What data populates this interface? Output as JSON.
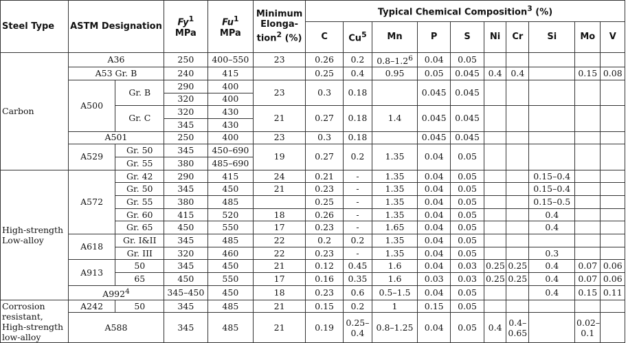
{
  "headers": {
    "steel_type": "Steel Type",
    "astm": "ASTM Designation",
    "fy": "Fy",
    "fy_sup": "1",
    "fu": "Fu",
    "fu_sup": "1",
    "mpa": "MPa",
    "min_elong_1": "Minimum",
    "min_elong_2": "Elonga-",
    "min_elong_3": "tion",
    "min_elong_sup": "2",
    "min_elong_4": "(%)",
    "chem": "Typical Chemical Composition",
    "chem_sup": "3",
    "chem_unit": "(%)",
    "elements": [
      "C",
      "Cu",
      "Mn",
      "P",
      "S",
      "Ni",
      "Cr",
      "Si",
      "Mo",
      "V"
    ],
    "cu_sup": "5"
  },
  "groups": {
    "carbon": "Carbon",
    "hsla": "High-strength Low-alloy",
    "corrosion": "Corrosion resistant, High-strength low-alloy"
  },
  "rows": {
    "a36": {
      "desig": "A36",
      "fy": "250",
      "fu": "400–550",
      "el": "23",
      "c": "0.26",
      "cu": "0.2",
      "mn": "0.8–1.2",
      "mn_sup": "6",
      "p": "0.04",
      "s": "0.05"
    },
    "a53": {
      "desig": "A53 Gr. B",
      "fy": "240",
      "fu": "415",
      "c": "0.25",
      "cu": "0.4",
      "mn": "0.95",
      "p": "0.05",
      "s": "0.045",
      "ni": "0.4",
      "cr": "0.4",
      "mo": "0.15",
      "v": "0.08"
    },
    "a500": {
      "desig": "A500",
      "grb": "Gr. B",
      "grc": "Gr. C",
      "b_fy1": "290",
      "b_fu1": "400",
      "b_fy2": "320",
      "b_fu2": "400",
      "b_el": "23",
      "b_c": "0.3",
      "b_cu": "0.18",
      "b_p": "0.045",
      "b_s": "0.045",
      "c_fy1": "320",
      "c_fu1": "430",
      "c_fy2": "345",
      "c_fu2": "430",
      "c_el": "21",
      "c_c": "0.27",
      "c_cu": "0.18",
      "c_mn": "1.4",
      "c_p": "0.045",
      "c_s": "0.045"
    },
    "a501": {
      "desig": "A501",
      "fy": "250",
      "fu": "400",
      "el": "23",
      "c": "0.3",
      "cu": "0.18",
      "p": "0.045",
      "s": "0.045"
    },
    "a529": {
      "desig": "A529",
      "g50": "Gr. 50",
      "g55": "Gr. 55",
      "fy50": "345",
      "fu50": "450–690",
      "fy55": "380",
      "fu55": "485–690",
      "el": "19",
      "c": "0.27",
      "cu": "0.2",
      "mn": "1.35",
      "p": "0.04",
      "s": "0.05"
    },
    "a572": {
      "desig": "A572",
      "grades": [
        {
          "gr": "Gr. 42",
          "fy": "290",
          "fu": "415",
          "el": "24",
          "c": "0.21",
          "cu": "-",
          "mn": "1.35",
          "p": "0.04",
          "s": "0.05",
          "si": "0.15–0.4"
        },
        {
          "gr": "Gr. 50",
          "fy": "345",
          "fu": "450",
          "el": "21",
          "c": "0.23",
          "cu": "-",
          "mn": "1.35",
          "p": "0.04",
          "s": "0.05",
          "si": "0.15–0.4"
        },
        {
          "gr": "Gr. 55",
          "fy": "380",
          "fu": "485",
          "el": "",
          "c": "0.25",
          "cu": "-",
          "mn": "1.35",
          "p": "0.04",
          "s": "0.05",
          "si": "0.15–0.5"
        },
        {
          "gr": "Gr. 60",
          "fy": "415",
          "fu": "520",
          "el": "18",
          "c": "0.26",
          "cu": "-",
          "mn": "1.35",
          "p": "0.04",
          "s": "0.05",
          "si": "0.4"
        },
        {
          "gr": "Gr. 65",
          "fy": "450",
          "fu": "550",
          "el": "17",
          "c": "0.23",
          "cu": "-",
          "mn": "1.65",
          "p": "0.04",
          "s": "0.05",
          "si": "0.4"
        }
      ]
    },
    "a618": {
      "desig": "A618",
      "grades": [
        {
          "gr": "Gr. I&II",
          "fy": "345",
          "fu": "485",
          "el": "22",
          "c": "0.2",
          "cu": "0.2",
          "mn": "1.35",
          "p": "0.04",
          "s": "0.05",
          "si": ""
        },
        {
          "gr": "Gr. III",
          "fy": "320",
          "fu": "460",
          "el": "22",
          "c": "0.23",
          "cu": "-",
          "mn": "1.35",
          "p": "0.04",
          "s": "0.05",
          "si": "0.3"
        }
      ]
    },
    "a913": {
      "desig": "A913",
      "grades": [
        {
          "gr": "50",
          "fy": "345",
          "fu": "450",
          "el": "21",
          "c": "0.12",
          "cu": "0.45",
          "mn": "1.6",
          "p": "0.04",
          "s": "0.03",
          "ni": "0.25",
          "cr": "0.25",
          "si": "0.4",
          "mo": "0.07",
          "v": "0.06"
        },
        {
          "gr": "65",
          "fy": "450",
          "fu": "550",
          "el": "17",
          "c": "0.16",
          "cu": "0.35",
          "mn": "1.6",
          "p": "0.03",
          "s": "0.03",
          "ni": "0.25",
          "cr": "0.25",
          "si": "0.4",
          "mo": "0.07",
          "v": "0.06"
        }
      ]
    },
    "a992": {
      "desig": "A992",
      "desig_sup": "4",
      "fy": "345–450",
      "fu": "450",
      "el": "18",
      "c": "0.23",
      "cu": "0.6",
      "mn": "0.5–1.5",
      "p": "0.04",
      "s": "0.05",
      "si": "0.4",
      "mo": "0.15",
      "v": "0.11"
    },
    "a242": {
      "desig": "A242",
      "gr": "50",
      "fy": "345",
      "fu": "485",
      "el": "21",
      "c": "0.15",
      "cu": "0.2",
      "mn": "1",
      "p": "0.15",
      "s": "0.05"
    },
    "a588": {
      "desig": "A588",
      "fy": "345",
      "fu": "485",
      "el": "21",
      "c": "0.19",
      "cu": "0.25–0.4",
      "mn": "0.8–1.25",
      "p": "0.04",
      "s": "0.05",
      "ni": "0.4",
      "cr": "0.4–0.65",
      "mo": "0.02–0.1"
    }
  }
}
